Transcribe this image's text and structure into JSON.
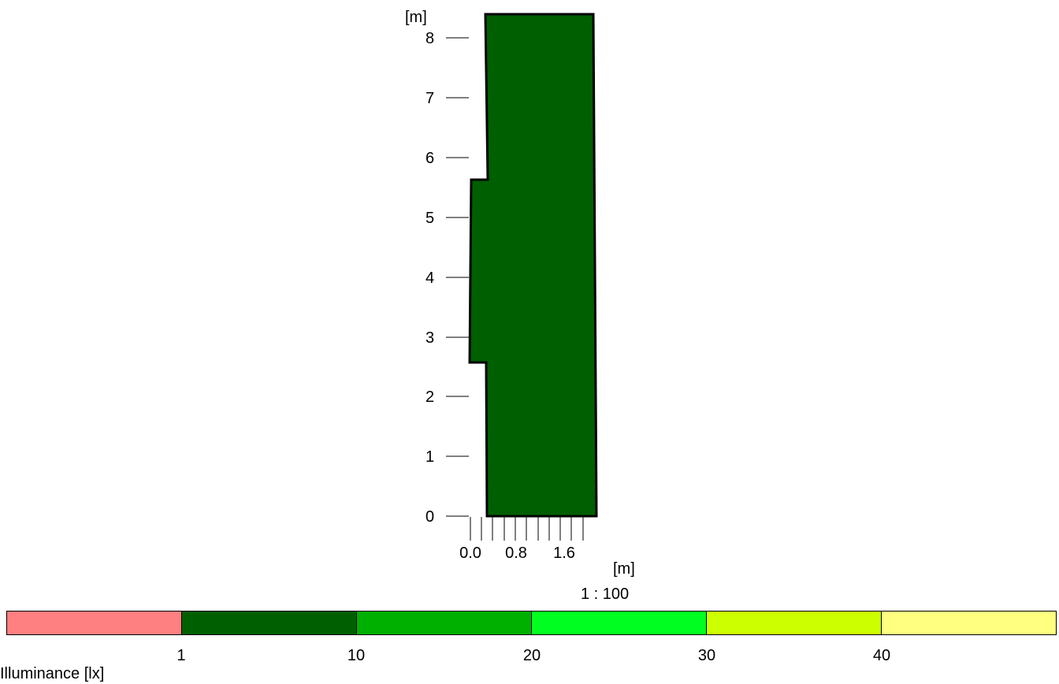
{
  "plan": {
    "y_axis_unit": "[m]",
    "y_ticks": [
      "0",
      "1",
      "2",
      "3",
      "4",
      "5",
      "6",
      "7",
      "8"
    ],
    "x_axis_unit": "[m]",
    "x_tick_labels": [
      "0.0",
      "0.8",
      "1.6"
    ],
    "scale": "1 : 100",
    "room_fill": "#005f00",
    "room_outline": "#000000"
  },
  "legend": {
    "title": "Illuminance [lx]",
    "colors": [
      "#ff8080",
      "#005f00",
      "#00b000",
      "#00ff20",
      "#ccff00",
      "#ffff80"
    ],
    "tick_labels": [
      "1",
      "10",
      "20",
      "30",
      "40"
    ]
  }
}
